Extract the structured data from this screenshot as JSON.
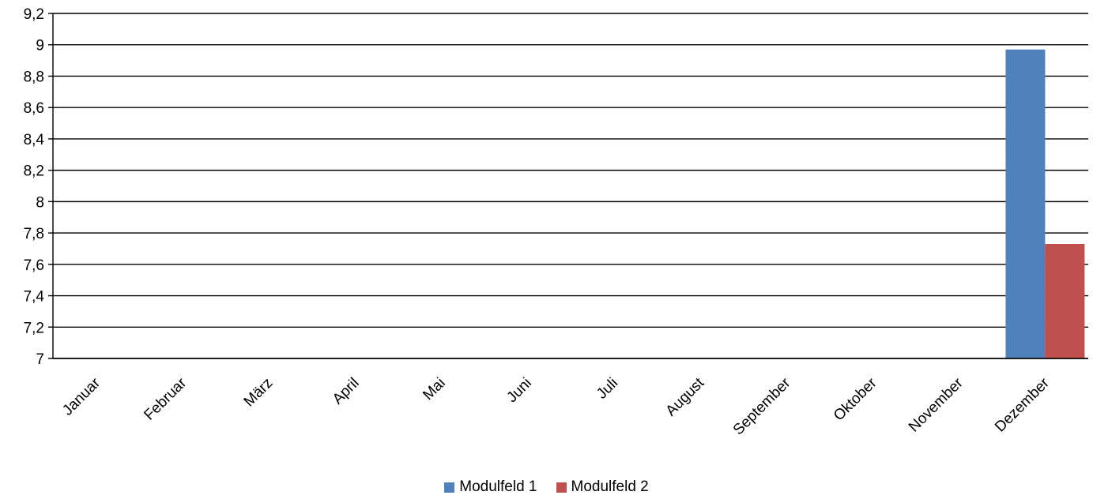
{
  "chart_data": {
    "type": "bar",
    "title": "",
    "xlabel": "",
    "ylabel": "",
    "ylim": [
      7,
      9.2
    ],
    "yticks": [
      {
        "value": 7,
        "label": "7"
      },
      {
        "value": 7.2,
        "label": "7,2"
      },
      {
        "value": 7.4,
        "label": "7,4"
      },
      {
        "value": 7.6,
        "label": "7,6"
      },
      {
        "value": 7.8,
        "label": "7,8"
      },
      {
        "value": 8,
        "label": "8"
      },
      {
        "value": 8.2,
        "label": "8,2"
      },
      {
        "value": 8.4,
        "label": "8,4"
      },
      {
        "value": 8.6,
        "label": "8,6"
      },
      {
        "value": 8.8,
        "label": "8,8"
      },
      {
        "value": 9,
        "label": "9"
      },
      {
        "value": 9.2,
        "label": "9,2"
      }
    ],
    "categories": [
      "Januar",
      "Februar",
      "März",
      "April",
      "Mai",
      "Juni",
      "Juli",
      "August",
      "September",
      "Oktober",
      "November",
      "Dezember"
    ],
    "series": [
      {
        "name": "Modulfeld 1",
        "color": "#4f81bd",
        "values": [
          null,
          null,
          null,
          null,
          null,
          null,
          null,
          null,
          null,
          null,
          null,
          8.97
        ]
      },
      {
        "name": "Modulfeld 2",
        "color": "#c0504d",
        "values": [
          null,
          null,
          null,
          null,
          null,
          null,
          null,
          null,
          null,
          null,
          null,
          7.73
        ]
      }
    ],
    "grid": true,
    "legend_position": "bottom"
  }
}
